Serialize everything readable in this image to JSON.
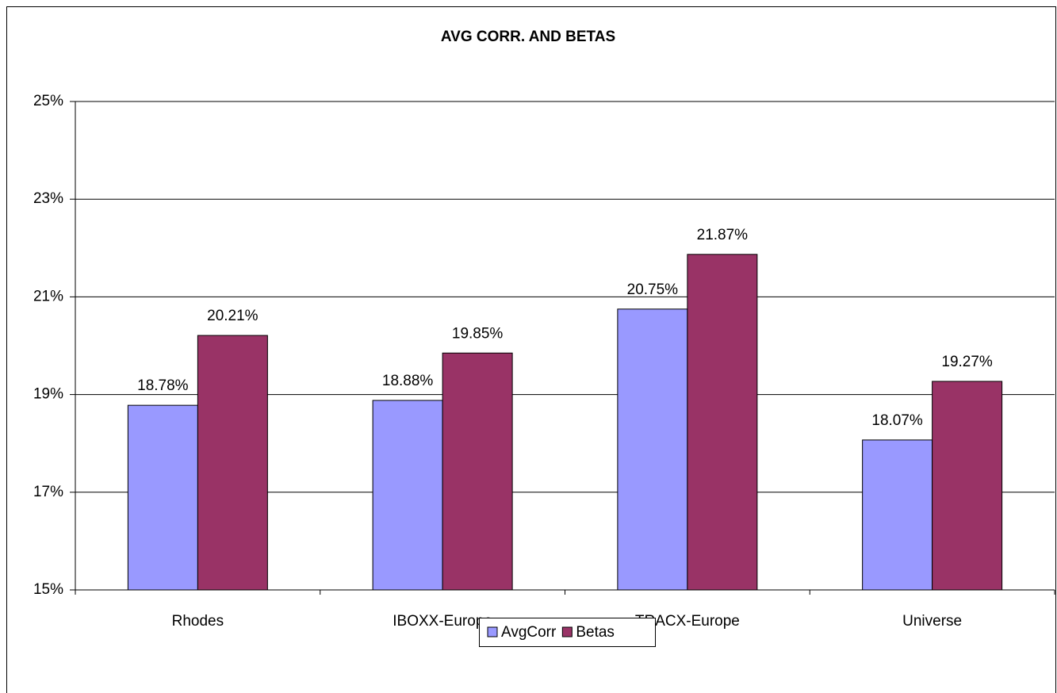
{
  "chart_data": {
    "type": "bar",
    "title": "AVG CORR. AND BETAS",
    "categories": [
      "Rhodes",
      "IBOXX-Europe",
      "TRACX-Europe",
      "Universe"
    ],
    "series": [
      {
        "name": "AvgCorr",
        "color": "#9999ff",
        "values": [
          18.78,
          18.88,
          20.75,
          18.07
        ],
        "value_labels": [
          "18.78%",
          "18.88%",
          "20.75%",
          "18.07%"
        ]
      },
      {
        "name": "Betas",
        "color": "#993366",
        "values": [
          20.21,
          19.85,
          21.87,
          19.27
        ],
        "value_labels": [
          "20.21%",
          "19.85%",
          "21.87%",
          "19.27%"
        ]
      }
    ],
    "ylim": [
      15,
      25
    ],
    "yticks": [
      {
        "value": 15,
        "label": "15%"
      },
      {
        "value": 17,
        "label": "17%"
      },
      {
        "value": 19,
        "label": "19%"
      },
      {
        "value": 21,
        "label": "21%"
      },
      {
        "value": 23,
        "label": "23%"
      },
      {
        "value": 25,
        "label": "25%"
      }
    ],
    "grid": true,
    "legend": "bottom"
  }
}
